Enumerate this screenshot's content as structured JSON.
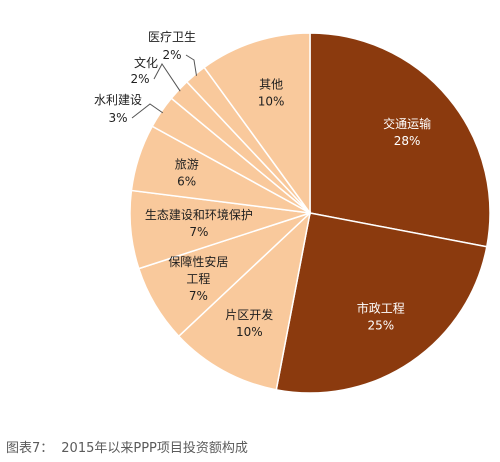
{
  "caption": {
    "figure_no": "图表7：",
    "title": "2015年以来PPP项目投资额构成"
  },
  "colors": {
    "dark": "#8b3a0e",
    "light": "#f9c99c",
    "stroke": "#ffffff",
    "text_on_dark": "#ffffff",
    "text_on_light": "#1f1f1f",
    "leader": "#555555"
  },
  "chart_data": {
    "type": "pie",
    "title": "2015年以来PPP项目投资额构成",
    "unit": "%",
    "start_angle_deg": 0,
    "direction": "clockwise",
    "slices": [
      {
        "label": "交通运输",
        "value": 28,
        "display": "28%",
        "tone": "dark"
      },
      {
        "label": "市政工程",
        "value": 25,
        "display": "25%",
        "tone": "dark"
      },
      {
        "label": "片区开发",
        "value": 10,
        "display": "10%",
        "tone": "light"
      },
      {
        "label": "保障性安居工程",
        "label_lines": [
          "保障性安居",
          "工程"
        ],
        "value": 7,
        "display": "7%",
        "tone": "light"
      },
      {
        "label": "生态建设和环境保护",
        "value": 7,
        "display": "7%",
        "tone": "light"
      },
      {
        "label": "旅游",
        "value": 6,
        "display": "6%",
        "tone": "light"
      },
      {
        "label": "水利建设",
        "value": 3,
        "display": "3%",
        "tone": "light",
        "outside": true
      },
      {
        "label": "文化",
        "value": 2,
        "display": "2%",
        "tone": "light",
        "outside": true
      },
      {
        "label": "医疗卫生",
        "value": 2,
        "display": "2%",
        "tone": "light",
        "outside": true
      },
      {
        "label": "其他",
        "value": 10,
        "display": "10%",
        "tone": "light"
      }
    ]
  }
}
